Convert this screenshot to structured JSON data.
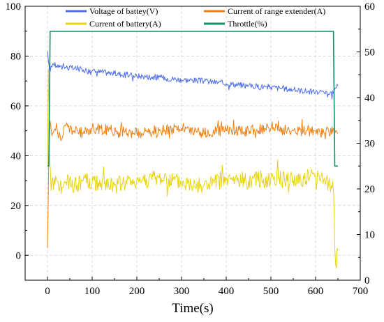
{
  "chart_data": {
    "type": "line",
    "xlabel": "Time(s)",
    "x_axis": {
      "range": [
        -50,
        700
      ],
      "ticks": [
        0,
        100,
        200,
        300,
        400,
        500,
        600,
        700
      ]
    },
    "y_left": {
      "range": [
        -10,
        100
      ],
      "ticks": [
        0,
        20,
        40,
        60,
        80,
        100
      ]
    },
    "y_right": {
      "range": [
        0,
        60
      ],
      "ticks": [
        0,
        10,
        20,
        30,
        40,
        50,
        60
      ]
    },
    "grid": true,
    "legend_position": "top",
    "series": [
      {
        "name": "Voltage of battey(V)",
        "axis": "left",
        "color": "#4f6fe6",
        "x": [
          0,
          2,
          5,
          8,
          12,
          20,
          40,
          60,
          80,
          100,
          150,
          200,
          250,
          300,
          350,
          400,
          450,
          500,
          550,
          600,
          620,
          630,
          640,
          645,
          650
        ],
        "y": [
          82,
          78,
          73,
          76,
          77,
          76,
          75.5,
          75,
          74.5,
          74,
          73,
          72,
          71.5,
          70.5,
          70,
          69,
          68,
          67.5,
          66.5,
          65.5,
          65,
          64.5,
          65,
          67,
          68
        ]
      },
      {
        "name": "Current of range extender(A)",
        "axis": "left",
        "color": "#f07f12",
        "x": [
          0,
          3,
          6,
          10,
          20,
          30,
          40,
          60,
          80,
          100,
          150,
          200,
          250,
          300,
          350,
          400,
          450,
          500,
          550,
          600,
          620,
          640,
          645,
          650
        ],
        "y": [
          3,
          40,
          54,
          48,
          53,
          46,
          52,
          50,
          49,
          51,
          50,
          49,
          50,
          51,
          49,
          50,
          50,
          51,
          50,
          50,
          49,
          51,
          50,
          49
        ]
      },
      {
        "name": "Current of battery(A)",
        "axis": "left",
        "color": "#e8d40c",
        "x": [
          0,
          2,
          5,
          8,
          15,
          25,
          40,
          60,
          80,
          100,
          150,
          200,
          250,
          300,
          350,
          400,
          450,
          500,
          550,
          600,
          620,
          635,
          640,
          643,
          645,
          650
        ],
        "y": [
          36,
          75,
          38,
          26,
          31,
          27,
          29,
          28,
          30,
          29,
          28,
          30,
          31,
          29,
          28,
          30,
          30,
          31,
          30,
          32,
          31,
          28,
          26,
          3,
          -4,
          2
        ]
      },
      {
        "name": "Throttle(%)",
        "axis": "right",
        "color": "#12906a",
        "x": [
          0,
          3,
          6,
          640,
          643,
          650
        ],
        "y": [
          25,
          25,
          54.5,
          54.5,
          25,
          25
        ]
      }
    ]
  }
}
